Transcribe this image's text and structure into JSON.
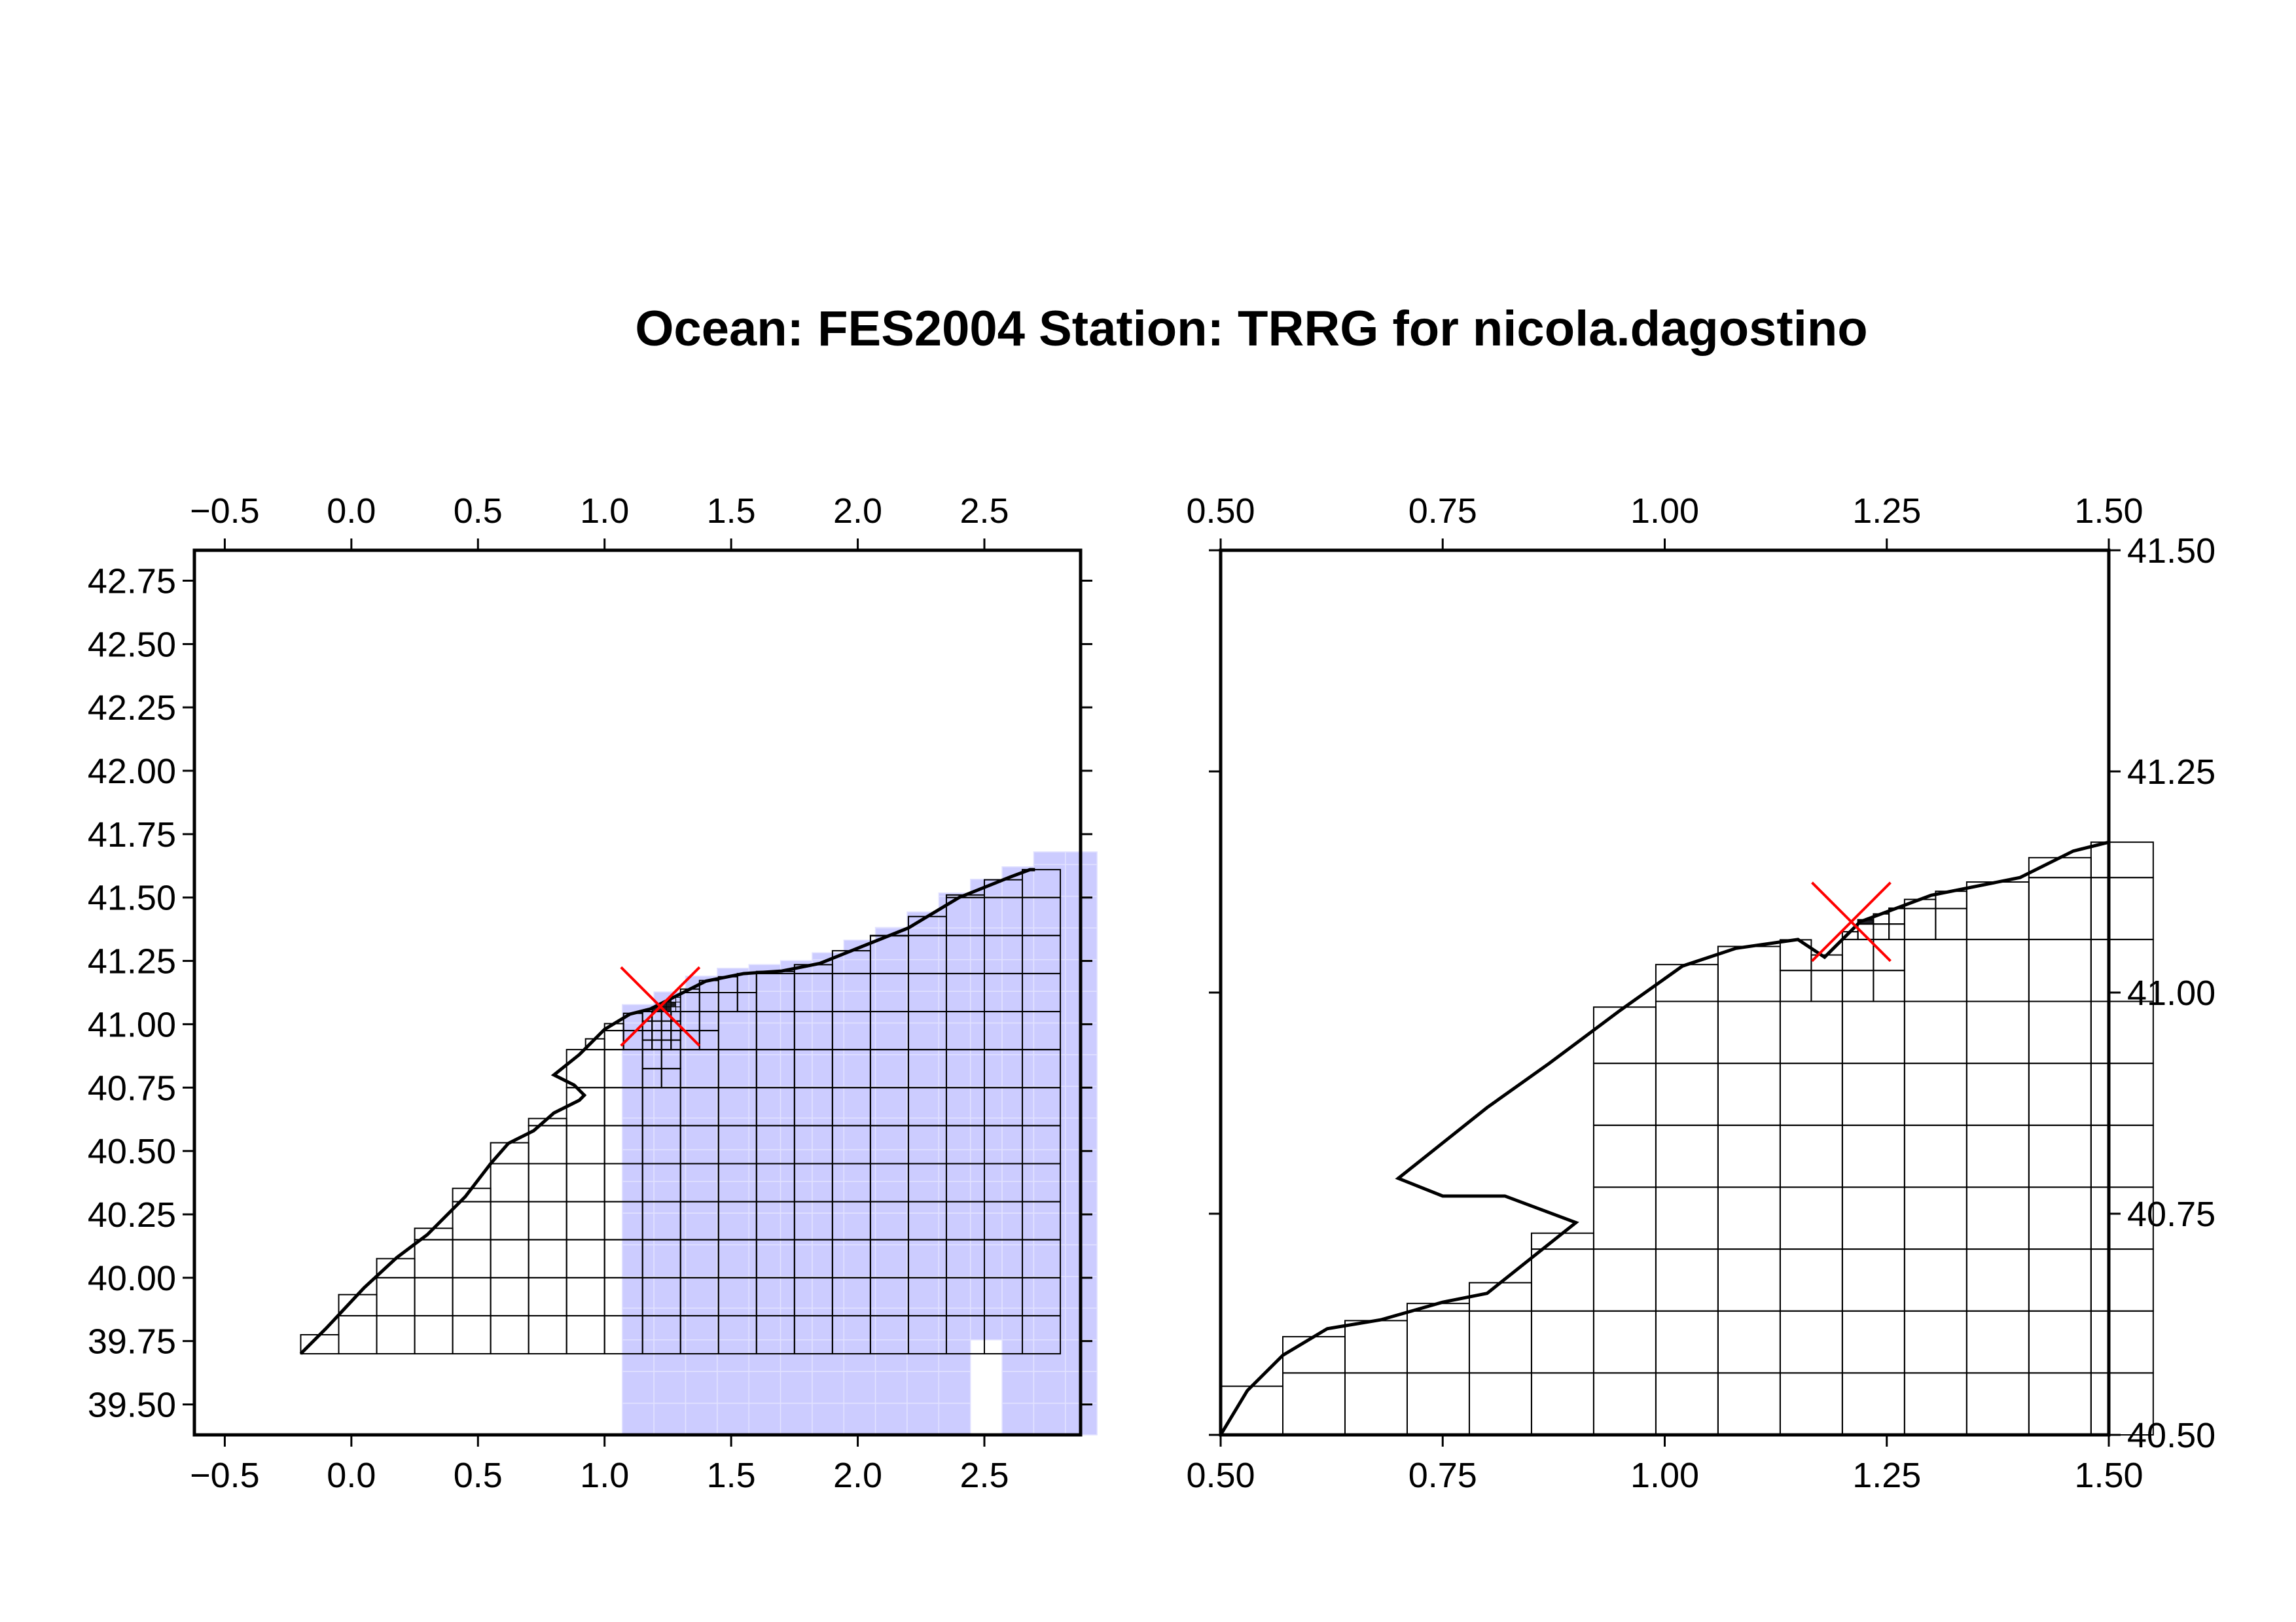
{
  "title": "Ocean: FES2004  Station: TRRG  for nicola.dagostino",
  "colors": {
    "background": "#ffffff",
    "frame": "#000000",
    "grid_lines": "#000000",
    "shaded_cells": "#ccccff",
    "shaded_cell_edges": "#e2e2ff",
    "station_marker": "#ff0000",
    "density_dark": "#1e1e26"
  },
  "panels": [
    {
      "id": "overview",
      "x_ticks": [
        "-0.5",
        "0.0",
        "0.5",
        "1.0",
        "1.5",
        "2.0",
        "2.5"
      ],
      "y_ticks": [
        "39.50",
        "39.75",
        "40.00",
        "40.25",
        "40.50",
        "40.75",
        "41.00",
        "41.25",
        "41.50",
        "41.75",
        "42.00",
        "42.25",
        "42.50",
        "42.75"
      ],
      "x_range": [
        -0.62,
        2.88
      ],
      "y_range": [
        39.38,
        42.87
      ],
      "y_labels_side": "left",
      "station": {
        "lon": 1.22,
        "lat": 41.07
      }
    },
    {
      "id": "zoom",
      "x_ticks": [
        "0.50",
        "0.75",
        "1.00",
        "1.25",
        "1.50"
      ],
      "y_ticks": [
        "40.50",
        "40.75",
        "41.00",
        "41.25",
        "41.50"
      ],
      "x_range": [
        0.5,
        1.5
      ],
      "y_range": [
        40.5,
        41.5
      ],
      "y_labels_side": "right",
      "station": {
        "lon": 1.21,
        "lat": 41.08
      }
    }
  ]
}
